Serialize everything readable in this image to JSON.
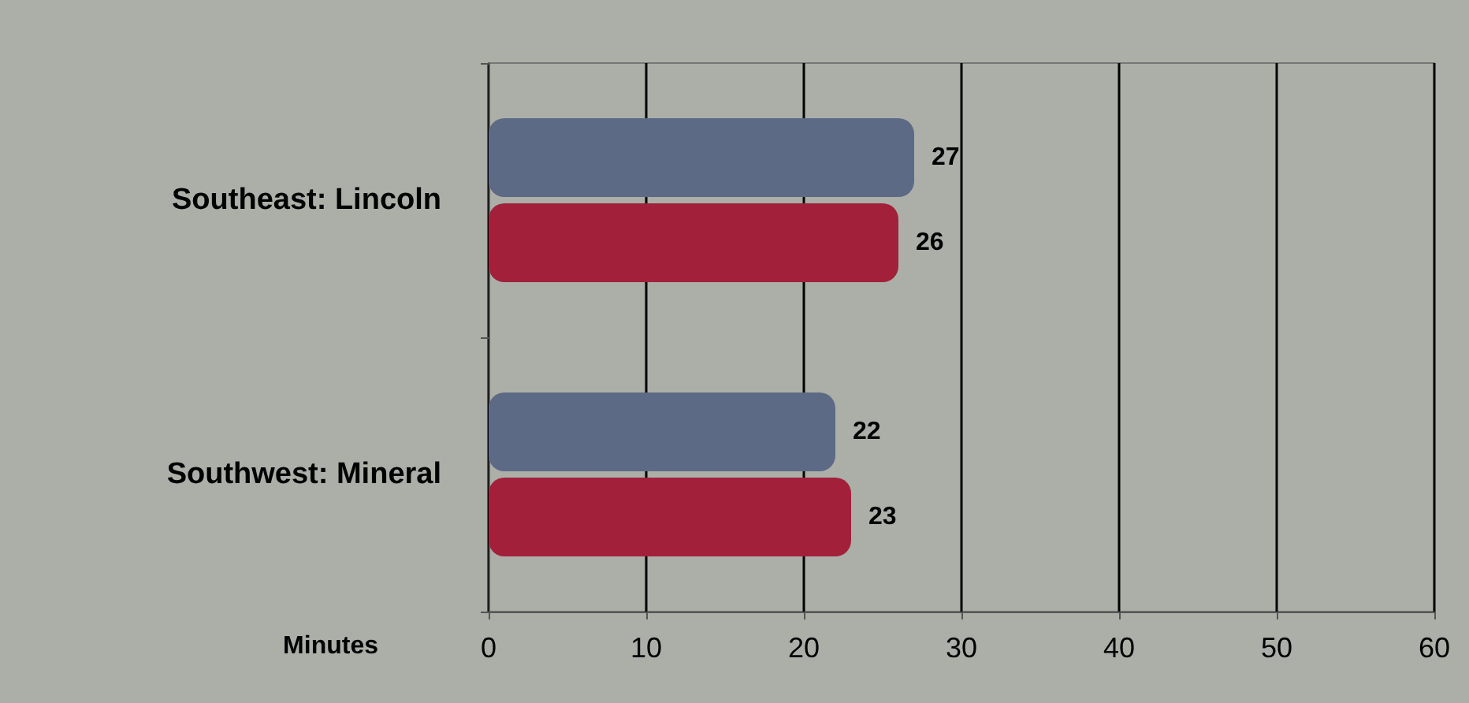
{
  "chart_data": {
    "type": "bar",
    "orientation": "horizontal",
    "categories": [
      "Southeast: Lincoln",
      "Southwest: Mineral"
    ],
    "series": [
      {
        "color": "#5d6a85",
        "values": [
          27,
          22
        ]
      },
      {
        "color": "#a3203a",
        "values": [
          26,
          23
        ]
      }
    ],
    "xlabel": "Minutes",
    "xlim": [
      0,
      60
    ],
    "xticks": [
      0,
      10,
      20,
      30,
      40,
      50,
      60
    ],
    "grid": "x",
    "data_labels": true
  }
}
